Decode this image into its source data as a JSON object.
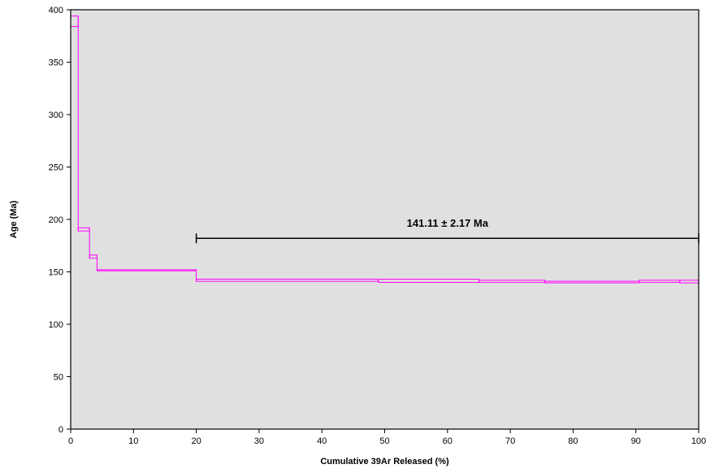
{
  "chart_data": {
    "type": "line",
    "title": "",
    "xlabel": "Cumulative 39Ar Released (%)",
    "ylabel": "Age (Ma)",
    "xlim": [
      0,
      100
    ],
    "ylim": [
      0,
      400
    ],
    "x_ticks": [
      "0",
      "10",
      "20",
      "30",
      "40",
      "50",
      "60",
      "70",
      "80",
      "90",
      "100"
    ],
    "y_ticks": [
      "0",
      "50",
      "100",
      "150",
      "200",
      "250",
      "300",
      "350",
      "400"
    ],
    "plot_background": "#e0e0e0",
    "series_color": "#ff00ff",
    "grid": false,
    "steps": [
      {
        "x0": 0,
        "x1": 1.2,
        "age_low": 384,
        "age_high": 394
      },
      {
        "x0": 1.2,
        "x1": 3.0,
        "age_low": 189,
        "age_high": 192
      },
      {
        "x0": 3.0,
        "x1": 4.2,
        "age_low": 163,
        "age_high": 166
      },
      {
        "x0": 4.2,
        "x1": 20.0,
        "age_low": 151,
        "age_high": 152
      },
      {
        "x0": 20.0,
        "x1": 49.0,
        "age_low": 141,
        "age_high": 143
      },
      {
        "x0": 49.0,
        "x1": 65.0,
        "age_low": 140,
        "age_high": 143
      },
      {
        "x0": 65.0,
        "x1": 75.5,
        "age_low": 140,
        "age_high": 142
      },
      {
        "x0": 75.5,
        "x1": 90.5,
        "age_low": 139.5,
        "age_high": 141
      },
      {
        "x0": 90.5,
        "x1": 97.0,
        "age_low": 140,
        "age_high": 142
      },
      {
        "x0": 97.0,
        "x1": 100.0,
        "age_low": 139.5,
        "age_high": 142
      }
    ],
    "plateau": {
      "x_start": 20,
      "x_end": 100,
      "y": 182,
      "label": "141.11 ± 2.17 Ma"
    }
  }
}
